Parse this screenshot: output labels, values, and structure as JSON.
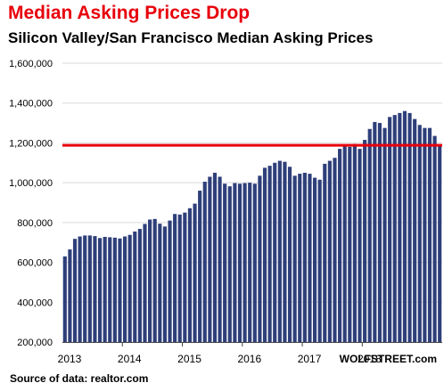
{
  "title": "Median Asking Prices Drop",
  "subtitle": "Silicon Valley/San Francisco Median Asking Prices",
  "watermark": "WOLFSTREET.com",
  "source": "Source of data: realtor.com",
  "colors": {
    "title": "#e8000b",
    "bar": "#2e3f7a",
    "reference_line": "#e8000b",
    "grid": "#d9d9d9"
  },
  "chart_data": {
    "type": "bar",
    "title": "Silicon Valley/San Francisco Median Asking Prices",
    "xlabel": "",
    "ylabel": "",
    "ylim": [
      200000,
      1600000
    ],
    "yticks": [
      200000,
      400000,
      600000,
      800000,
      1000000,
      1200000,
      1400000,
      1600000
    ],
    "ytick_labels": [
      "200,000",
      "400,000",
      "600,000",
      "800,000",
      "1,000,000",
      "1,200,000",
      "1,400,000",
      "1,600,000"
    ],
    "xtick_labels": [
      "2013",
      "2014",
      "2015",
      "2016",
      "2017",
      "2018"
    ],
    "grid": "horizontal",
    "start": "2013-01",
    "frequency": "monthly",
    "values": [
      630000,
      665000,
      718000,
      730000,
      735000,
      735000,
      732000,
      722000,
      728000,
      726000,
      724000,
      720000,
      730000,
      738000,
      755000,
      768000,
      793000,
      815000,
      818000,
      794000,
      780000,
      810000,
      843000,
      840000,
      850000,
      872000,
      895000,
      960000,
      1005000,
      1030000,
      1050000,
      1030000,
      995000,
      982000,
      998000,
      995000,
      998000,
      1000000,
      995000,
      1035000,
      1075000,
      1085000,
      1100000,
      1110000,
      1105000,
      1080000,
      1035000,
      1045000,
      1050000,
      1045000,
      1025000,
      1015000,
      1095000,
      1110000,
      1125000,
      1170000,
      1185000,
      1180000,
      1195000,
      1170000,
      1215000,
      1270000,
      1305000,
      1300000,
      1275000,
      1330000,
      1340000,
      1350000,
      1360000,
      1350000,
      1320000,
      1290000,
      1275000,
      1275000,
      1235000,
      1190000
    ],
    "reference_line": {
      "value": 1188000,
      "color": "#e8000b"
    }
  }
}
